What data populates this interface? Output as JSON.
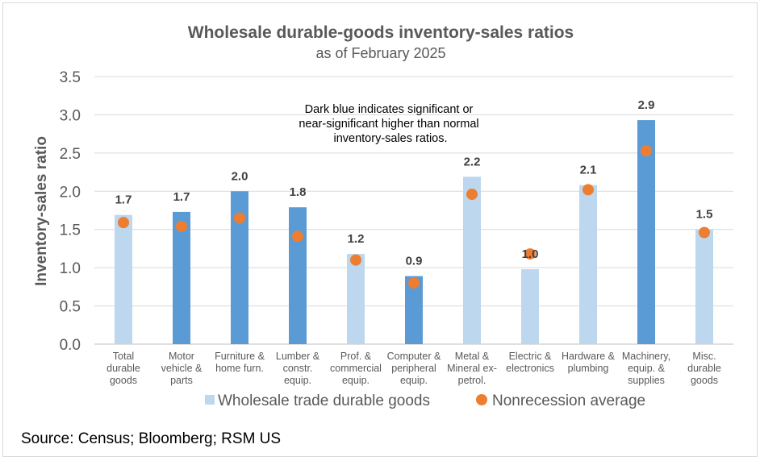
{
  "chart_data": {
    "type": "bar",
    "title": "Wholesale durable-goods inventory-sales ratios",
    "subtitle": "as of February 2025",
    "ylabel": "Inventory-sales ratio",
    "xlabel": "",
    "ylim": [
      0,
      3.5
    ],
    "yticks": [
      "0.0",
      "0.5",
      "1.0",
      "1.5",
      "2.0",
      "2.5",
      "3.0",
      "3.5"
    ],
    "grid": true,
    "legend_position": "bottom",
    "categories": [
      [
        "Total",
        "durable",
        "goods"
      ],
      [
        "Motor",
        "vehicle &",
        "parts"
      ],
      [
        "Furniture &",
        "home furn."
      ],
      [
        "Lumber &",
        "constr.",
        "equip."
      ],
      [
        "Prof. &",
        "commercial",
        "equip."
      ],
      [
        "Computer &",
        "peripheral",
        "equip."
      ],
      [
        "Metal &",
        "Mineral ex-",
        "petrol."
      ],
      [
        "Electric &",
        "electronics"
      ],
      [
        "Hardware &",
        "plumbing"
      ],
      [
        "Machinery,",
        "equip. &",
        "supplies"
      ],
      [
        "Misc.",
        "durable",
        "goods"
      ]
    ],
    "series": [
      {
        "name": "Wholesale trade durable goods",
        "type": "bar",
        "values": [
          1.69,
          1.73,
          2.0,
          1.79,
          1.18,
          0.89,
          2.19,
          0.98,
          2.08,
          2.93,
          1.5
        ],
        "data_labels": [
          "1.7",
          "1.7",
          "2.0",
          "1.8",
          "1.2",
          "0.9",
          "2.2",
          "1.0",
          "2.1",
          "2.9",
          "1.5"
        ],
        "highlighted": [
          false,
          true,
          true,
          true,
          false,
          true,
          false,
          false,
          false,
          true,
          false
        ]
      },
      {
        "name": "Nonrecession average",
        "type": "scatter",
        "values": [
          1.59,
          1.54,
          1.65,
          1.41,
          1.1,
          0.8,
          1.96,
          1.18,
          2.02,
          2.53,
          1.46
        ]
      }
    ],
    "annotation": [
      "Dark blue  indicates significant or",
      "near-significant  higher than normal",
      "inventory-sales ratios."
    ],
    "colors": {
      "bar_light": "#BDD7EE",
      "bar_dark": "#5B9BD5",
      "dot": "#ED7D31",
      "grid": "#D9D9D9"
    }
  },
  "source": "Source: Census; Bloomberg; RSM US"
}
